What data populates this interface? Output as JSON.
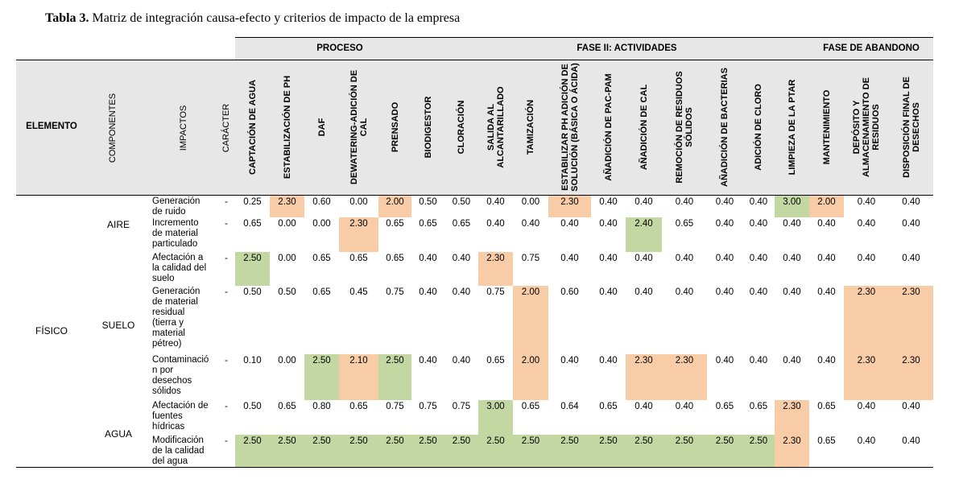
{
  "caption": {
    "label": "Tabla 3.",
    "text": "Matriz de integración causa-efecto y criterios de impacto de la empresa"
  },
  "phases": [
    {
      "label": "PROCESO",
      "from": 0,
      "to": 5
    },
    {
      "label": "FASE II: ACTIVIDADES",
      "from": 6,
      "to": 15
    },
    {
      "label": "FASE DE ABANDONO",
      "from": 16,
      "to": 18
    }
  ],
  "fixed_headers": {
    "elemento": "ELEMENTO",
    "componentes": "COMPONENTES",
    "impactos": "IMPACTOS",
    "caracter": "CARÁCTER"
  },
  "activities": [
    "CAPTACIÓN DE AGUA",
    "ESTABILIZACIÓN DE PH",
    "DAF",
    "DEWATERING-ADICIÓN DE CAL",
    "PRENSADO",
    "BIODIGESTOR",
    "CLORACIÓN",
    "SALIDA AL ALCANTARILLADO",
    "TAMIZACIÓN",
    "ESTABILIZAR PH ADICIÓN DE SOLUCIÓN (BÁSICA O ÁCIDA)",
    "AÑADICIÓN DE PAC-PAM",
    "AÑADICIÓN DE CAL",
    "REMOCIÓN DE RESIDUOS SÓLIDOS",
    "AÑADICIÓN DE BACTERIAS",
    "ADICIÓN DE CLORO",
    "LIMPIEZA DE LA PTAR",
    "MANTENIMIENTO",
    "DEPÓSITO Y ALMACENAMIENTO DE RESIDUOS",
    "DISPOSICIÓN FINAL DE DESECHOS"
  ],
  "element": "FÍSICO",
  "components": [
    "AIRE",
    "SUELO",
    "AGUA"
  ],
  "colors": {
    "orange": "#f8cca7",
    "green": "#c3d7a2",
    "header": "#e7e7e7"
  },
  "rows": [
    {
      "component": "AIRE",
      "impact": [
        "Generación",
        "de ruido"
      ],
      "caracter": "-",
      "values": [
        "0.25",
        "2.30",
        "0.60",
        "0.00",
        "2.00",
        "0.50",
        "0.50",
        "0.40",
        "0.00",
        "2.30",
        "0.40",
        "0.40",
        "0.40",
        "0.40",
        "0.40",
        "3.00",
        "2.00",
        "0.40",
        "0.40"
      ],
      "colors": [
        "",
        "o",
        "",
        "",
        "o",
        "",
        "",
        "",
        "",
        "o",
        "",
        "",
        "",
        "",
        "",
        "g",
        "o",
        "",
        ""
      ]
    },
    {
      "component": "AIRE",
      "impact": [
        "Incremento",
        "de material",
        "particulado"
      ],
      "caracter": "-",
      "values": [
        "0.65",
        "0.00",
        "0.00",
        "2.30",
        "0.65",
        "0.65",
        "0.65",
        "0.40",
        "0.40",
        "0.40",
        "0.40",
        "2.40",
        "0.65",
        "0.40",
        "0.40",
        "0.40",
        "0.40",
        "0.40",
        "0.40"
      ],
      "colors": [
        "",
        "",
        "",
        "o",
        "",
        "",
        "",
        "",
        "",
        "",
        "",
        "g",
        "",
        "",
        "",
        "",
        "",
        "",
        ""
      ]
    },
    {
      "component": "SUELO",
      "impact": [
        "Afectación a",
        "la calidad del",
        "suelo"
      ],
      "caracter": "-",
      "values": [
        "2.50",
        "0.00",
        "0.65",
        "0.65",
        "0.65",
        "0.40",
        "0.40",
        "2.30",
        "0.75",
        "0.40",
        "0.40",
        "0.40",
        "0.40",
        "0.40",
        "0.40",
        "0.40",
        "0.40",
        "0.40",
        "0.40"
      ],
      "colors": [
        "g",
        "",
        "",
        "",
        "",
        "",
        "",
        "o",
        "",
        "",
        "",
        "",
        "",
        "",
        "",
        "",
        "",
        "",
        ""
      ]
    },
    {
      "component": "SUELO",
      "impact": [
        "Generación",
        "de material",
        "residual",
        "(tierra y",
        "material",
        "pétreo)"
      ],
      "caracter": "-",
      "values": [
        "0.50",
        "0.50",
        "0.65",
        "0.45",
        "0.75",
        "0.40",
        "0.40",
        "0.75",
        "2.00",
        "0.60",
        "0.40",
        "0.40",
        "0.40",
        "0.40",
        "0.40",
        "0.40",
        "0.40",
        "2.30",
        "2.30"
      ],
      "colors": [
        "",
        "",
        "",
        "",
        "",
        "",
        "",
        "",
        "o",
        "",
        "",
        "",
        "",
        "",
        "",
        "",
        "",
        "o",
        "o"
      ]
    },
    {
      "component": "SUELO",
      "impact": [
        "Contaminació",
        "n por",
        "desechos",
        "sólidos"
      ],
      "caracter": "-",
      "values": [
        "0.10",
        "0.00",
        "2.50",
        "2.10",
        "2.50",
        "0.40",
        "0.40",
        "0.65",
        "2.00",
        "0.40",
        "0.40",
        "2.30",
        "2.30",
        "0.40",
        "0.40",
        "0.40",
        "0.40",
        "2.30",
        "2.30"
      ],
      "colors": [
        "",
        "",
        "g",
        "o",
        "g",
        "",
        "",
        "",
        "o",
        "",
        "",
        "o",
        "o",
        "",
        "",
        "",
        "",
        "o",
        "o"
      ]
    },
    {
      "component": "AGUA",
      "impact": [
        "Afectación de",
        "fuentes",
        "hídricas"
      ],
      "caracter": "-",
      "values": [
        "0.50",
        "0.65",
        "0.80",
        "0.65",
        "0.75",
        "0.75",
        "0.75",
        "3.00",
        "0.65",
        "0.64",
        "0.65",
        "0.40",
        "0.40",
        "0.65",
        "0.65",
        "2.30",
        "0.65",
        "0.40",
        "0.40"
      ],
      "colors": [
        "",
        "",
        "",
        "",
        "",
        "",
        "",
        "g",
        "",
        "",
        "",
        "",
        "",
        "",
        "",
        "o",
        "",
        "",
        ""
      ]
    },
    {
      "component": "AGUA",
      "impact": [
        "Modificación",
        "de la calidad",
        "del agua"
      ],
      "caracter": "-",
      "values": [
        "2.50",
        "2.50",
        "2.50",
        "2.50",
        "2.50",
        "2.50",
        "2.50",
        "2.50",
        "2.50",
        "2.50",
        "2.50",
        "2.50",
        "2.50",
        "2.50",
        "2.50",
        "2.30",
        "0.65",
        "0.40",
        "0.40"
      ],
      "colors": [
        "g",
        "g",
        "g",
        "g",
        "g",
        "g",
        "g",
        "g",
        "g",
        "g",
        "g",
        "g",
        "g",
        "g",
        "g",
        "o",
        "",
        "",
        ""
      ]
    }
  ]
}
